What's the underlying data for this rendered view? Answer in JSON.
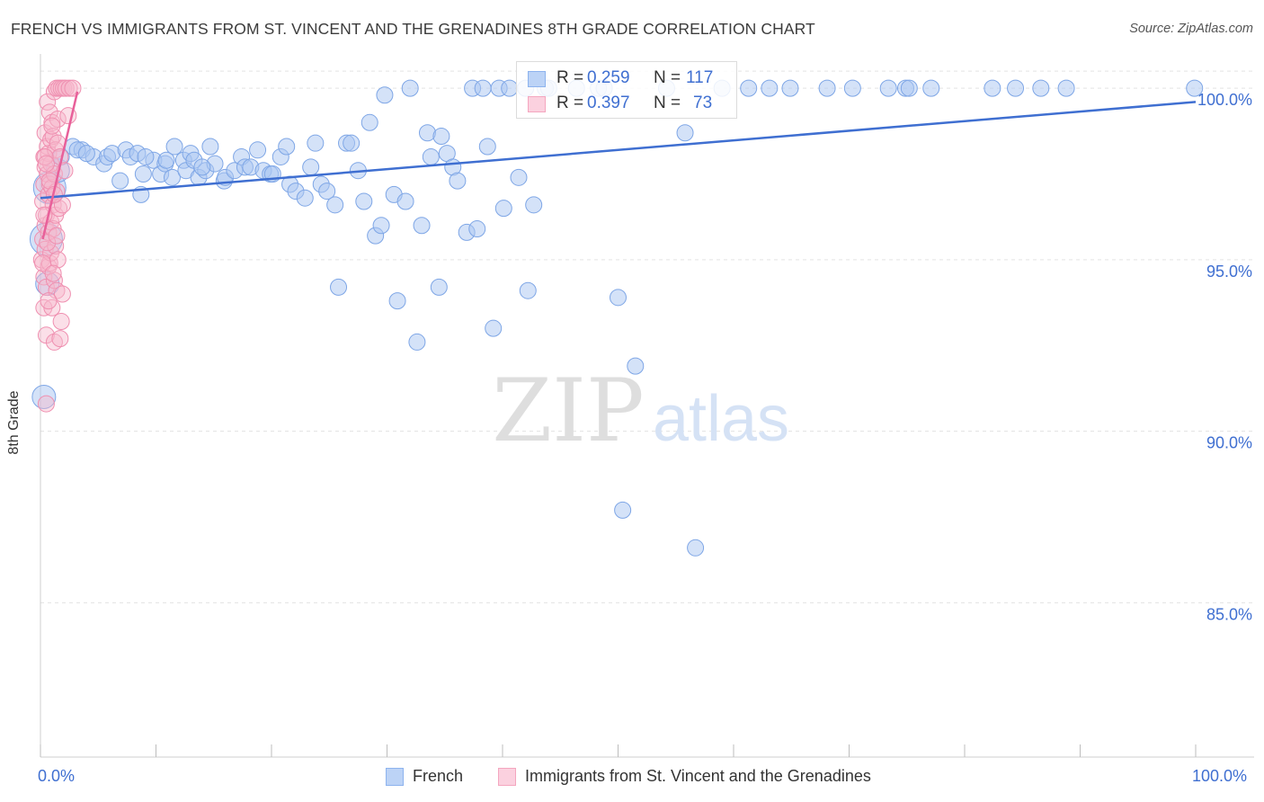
{
  "title": "FRENCH VS IMMIGRANTS FROM ST. VINCENT AND THE GRENADINES 8TH GRADE CORRELATION CHART",
  "source": "Source: ZipAtlas.com",
  "watermark_zip": "ZIP",
  "watermark_atlas": "atlas",
  "stats": [
    {
      "r_label": "R =",
      "r_value": "0.259",
      "n_label": "N =",
      "n_value": "117",
      "color": "#8db3ee"
    },
    {
      "r_label": "R =",
      "r_value": "0.397",
      "n_label": "N =",
      "n_value": "73",
      "color": "#f4a6bf"
    }
  ],
  "legend": [
    {
      "label": "French",
      "color": "#8db3ee"
    },
    {
      "label": "Immigrants from St. Vincent and the Grenadines",
      "color": "#f4a6bf"
    }
  ],
  "chart_data": {
    "type": "scatter",
    "title": "FRENCH VS IMMIGRANTS FROM ST. VINCENT AND THE GRENADINES 8TH GRADE CORRELATION CHART",
    "xlabel": "",
    "ylabel": "8th Grade",
    "xlim": [
      0,
      100
    ],
    "ylim": [
      80.5,
      101
    ],
    "x_tick_labels": [
      "0.0%",
      "100.0%"
    ],
    "y_ticks": [
      85,
      90,
      95,
      100
    ],
    "y_tick_labels": [
      "85.0%",
      "90.0%",
      "95.0%",
      "100.0%"
    ],
    "grid": true,
    "legend_position": "bottom",
    "colors": {
      "french": "#3f6fd1",
      "french_fill": "#a9c6f2",
      "svg": "#e8609a",
      "svg_fill": "#f7b8cd"
    },
    "series": [
      {
        "name": "French",
        "trend": {
          "x": [
            0,
            100
          ],
          "y": [
            96.8,
            99.6
          ]
        },
        "points": [
          [
            0.3,
            91.0,
            2
          ],
          [
            0.5,
            95.6,
            3
          ],
          [
            0.6,
            94.3,
            2
          ],
          [
            0.8,
            97.1,
            3
          ],
          [
            1.5,
            97.6,
            2
          ],
          [
            1.8,
            98.0,
            1
          ],
          [
            2.8,
            98.3,
            1
          ],
          [
            3.6,
            98.2,
            1
          ],
          [
            3.2,
            98.2,
            1
          ],
          [
            4.6,
            98.0,
            1
          ],
          [
            5.5,
            97.8,
            1
          ],
          [
            5.8,
            98.0,
            1
          ],
          [
            6.2,
            98.1,
            1
          ],
          [
            6.9,
            97.3,
            1
          ],
          [
            7.4,
            98.2,
            1
          ],
          [
            7.8,
            98.0,
            1
          ],
          [
            8.4,
            98.1,
            1
          ],
          [
            8.9,
            97.5,
            1
          ],
          [
            8.7,
            96.9,
            1
          ],
          [
            9.8,
            97.9,
            1
          ],
          [
            10.4,
            97.5,
            1
          ],
          [
            10.8,
            97.8,
            1
          ],
          [
            10.9,
            97.9,
            1
          ],
          [
            11.4,
            97.4,
            1
          ],
          [
            11.6,
            98.3,
            1
          ],
          [
            12.4,
            97.9,
            1
          ],
          [
            12.6,
            97.6,
            1
          ],
          [
            13.0,
            98.1,
            1
          ],
          [
            13.3,
            97.9,
            1
          ],
          [
            13.7,
            97.4,
            1
          ],
          [
            14.3,
            97.6,
            1
          ],
          [
            14.7,
            98.3,
            1
          ],
          [
            15.1,
            97.8,
            1
          ],
          [
            15.9,
            97.3,
            1
          ],
          [
            16.0,
            97.4,
            1
          ],
          [
            16.8,
            97.6,
            1
          ],
          [
            17.4,
            98.0,
            1
          ],
          [
            17.7,
            97.7,
            1
          ],
          [
            18.2,
            97.7,
            1
          ],
          [
            18.8,
            98.2,
            1
          ],
          [
            19.3,
            97.6,
            1
          ],
          [
            19.9,
            97.5,
            1
          ],
          [
            20.1,
            97.5,
            1
          ],
          [
            20.8,
            98.0,
            1
          ],
          [
            21.3,
            98.3,
            1
          ],
          [
            21.6,
            97.2,
            1
          ],
          [
            22.1,
            97.0,
            1
          ],
          [
            22.9,
            96.8,
            1
          ],
          [
            23.4,
            97.7,
            1
          ],
          [
            23.8,
            98.4,
            1
          ],
          [
            24.3,
            97.2,
            1
          ],
          [
            24.8,
            97.0,
            1
          ],
          [
            25.5,
            96.6,
            1
          ],
          [
            25.8,
            94.2,
            1
          ],
          [
            26.5,
            98.4,
            1
          ],
          [
            26.9,
            98.4,
            1
          ],
          [
            27.5,
            97.6,
            1
          ],
          [
            28.0,
            96.7,
            1
          ],
          [
            28.5,
            99.0,
            1
          ],
          [
            29.0,
            95.7,
            1
          ],
          [
            29.5,
            96.0,
            1
          ],
          [
            29.8,
            99.8,
            1
          ],
          [
            30.6,
            96.9,
            1
          ],
          [
            30.9,
            93.8,
            1
          ],
          [
            31.6,
            96.7,
            1
          ],
          [
            32.0,
            100.0,
            1
          ],
          [
            32.6,
            92.6,
            1
          ],
          [
            33.0,
            96.0,
            1
          ],
          [
            33.5,
            98.7,
            1
          ],
          [
            33.8,
            98.0,
            1
          ],
          [
            34.5,
            94.2,
            1
          ],
          [
            34.7,
            98.6,
            1
          ],
          [
            35.2,
            98.1,
            1
          ],
          [
            35.7,
            97.7,
            1
          ],
          [
            36.1,
            97.3,
            1
          ],
          [
            36.9,
            95.8,
            1
          ],
          [
            37.4,
            100.0,
            1
          ],
          [
            37.8,
            95.9,
            1
          ],
          [
            38.3,
            100.0,
            1
          ],
          [
            38.7,
            98.3,
            1
          ],
          [
            39.2,
            93.0,
            1
          ],
          [
            39.7,
            100.0,
            1
          ],
          [
            40.1,
            96.5,
            1
          ],
          [
            40.6,
            100.0,
            1
          ],
          [
            41.4,
            97.4,
            1
          ],
          [
            42.0,
            100.0,
            1
          ],
          [
            42.2,
            94.1,
            1
          ],
          [
            42.7,
            96.6,
            1
          ],
          [
            43.7,
            100.0,
            1
          ],
          [
            44.0,
            100.0,
            1
          ],
          [
            46.4,
            100.0,
            1
          ],
          [
            48.3,
            100.0,
            1
          ],
          [
            48.8,
            100.0,
            1
          ],
          [
            50.0,
            93.9,
            1
          ],
          [
            50.4,
            87.7,
            1
          ],
          [
            51.5,
            91.9,
            1
          ],
          [
            54.2,
            100.0,
            1
          ],
          [
            55.8,
            98.7,
            1
          ],
          [
            56.7,
            86.6,
            1
          ],
          [
            59.0,
            100.0,
            1
          ],
          [
            61.3,
            100.0,
            1
          ],
          [
            63.1,
            100.0,
            1
          ],
          [
            64.9,
            100.0,
            1
          ],
          [
            68.1,
            100.0,
            1
          ],
          [
            70.3,
            100.0,
            1
          ],
          [
            73.4,
            100.0,
            1
          ],
          [
            74.9,
            100.0,
            1
          ],
          [
            75.2,
            100.0,
            1
          ],
          [
            77.1,
            100.0,
            1
          ],
          [
            82.4,
            100.0,
            1
          ],
          [
            84.4,
            100.0,
            1
          ],
          [
            86.6,
            100.0,
            1
          ],
          [
            88.8,
            100.0,
            1
          ],
          [
            99.9,
            100.0,
            1
          ],
          [
            4.0,
            98.1,
            1
          ],
          [
            9.1,
            98.0,
            1
          ],
          [
            14.0,
            97.7,
            1
          ]
        ]
      },
      {
        "name": "Immigrants from St. Vincent and the Grenadines",
        "trend": {
          "x": [
            0.2,
            3.2
          ],
          "y": [
            95.6,
            99.9
          ]
        },
        "points": [
          [
            0.1,
            95.0,
            1
          ],
          [
            0.2,
            95.6,
            1
          ],
          [
            0.2,
            96.7,
            1
          ],
          [
            0.3,
            97.2,
            1
          ],
          [
            0.3,
            98.0,
            1
          ],
          [
            0.3,
            94.5,
            1
          ],
          [
            0.3,
            93.6,
            1
          ],
          [
            0.4,
            96.0,
            1
          ],
          [
            0.4,
            98.7,
            1
          ],
          [
            0.4,
            97.7,
            1
          ],
          [
            0.4,
            95.3,
            1
          ],
          [
            0.5,
            94.2,
            1
          ],
          [
            0.5,
            92.8,
            1
          ],
          [
            0.5,
            90.8,
            1
          ],
          [
            0.5,
            96.3,
            1
          ],
          [
            0.6,
            97.5,
            1
          ],
          [
            0.6,
            98.3,
            1
          ],
          [
            0.6,
            99.6,
            1
          ],
          [
            0.7,
            94.8,
            1
          ],
          [
            0.7,
            95.8,
            1
          ],
          [
            0.7,
            96.9,
            1
          ],
          [
            0.7,
            98.1,
            1
          ],
          [
            0.8,
            99.3,
            1
          ],
          [
            0.8,
            97.2,
            1
          ],
          [
            0.8,
            94.9,
            1
          ],
          [
            0.9,
            96.1,
            1
          ],
          [
            0.9,
            98.5,
            1
          ],
          [
            0.9,
            97.8,
            1
          ],
          [
            0.9,
            95.2,
            1
          ],
          [
            1.0,
            93.6,
            1
          ],
          [
            1.0,
            97.1,
            1
          ],
          [
            1.0,
            99.0,
            1
          ],
          [
            1.1,
            95.9,
            1
          ],
          [
            1.1,
            96.6,
            1
          ],
          [
            1.1,
            98.6,
            1
          ],
          [
            1.2,
            92.6,
            1
          ],
          [
            1.2,
            94.4,
            1
          ],
          [
            1.2,
            97.5,
            1
          ],
          [
            1.2,
            99.9,
            1
          ],
          [
            1.3,
            96.3,
            1
          ],
          [
            1.3,
            98.2,
            1
          ],
          [
            1.3,
            95.4,
            1
          ],
          [
            1.4,
            100.0,
            1
          ],
          [
            1.4,
            97.0,
            1
          ],
          [
            1.4,
            94.1,
            1
          ],
          [
            1.5,
            98.4,
            1
          ],
          [
            1.5,
            95.0,
            1
          ],
          [
            1.5,
            99.1,
            1
          ],
          [
            1.6,
            100.0,
            1
          ],
          [
            1.6,
            96.5,
            1
          ],
          [
            1.7,
            92.7,
            1
          ],
          [
            1.7,
            98.0,
            1
          ],
          [
            1.8,
            93.2,
            1
          ],
          [
            1.8,
            100.0,
            1
          ],
          [
            1.9,
            96.6,
            1
          ],
          [
            1.9,
            94.0,
            1
          ],
          [
            2.0,
            100.0,
            1
          ],
          [
            2.1,
            97.6,
            1
          ],
          [
            2.2,
            100.0,
            1
          ],
          [
            2.4,
            99.2,
            1
          ],
          [
            2.5,
            100.0,
            1
          ],
          [
            2.8,
            100.0,
            1
          ],
          [
            0.2,
            94.9,
            1
          ],
          [
            0.3,
            96.3,
            1
          ],
          [
            0.4,
            98.0,
            1
          ],
          [
            0.6,
            95.5,
            1
          ],
          [
            0.7,
            93.8,
            1
          ],
          [
            0.8,
            97.3,
            1
          ],
          [
            1.0,
            98.9,
            1
          ],
          [
            1.1,
            94.6,
            1
          ],
          [
            1.2,
            96.9,
            1
          ],
          [
            1.4,
            95.7,
            1
          ],
          [
            0.5,
            97.8,
            1
          ]
        ]
      }
    ]
  }
}
